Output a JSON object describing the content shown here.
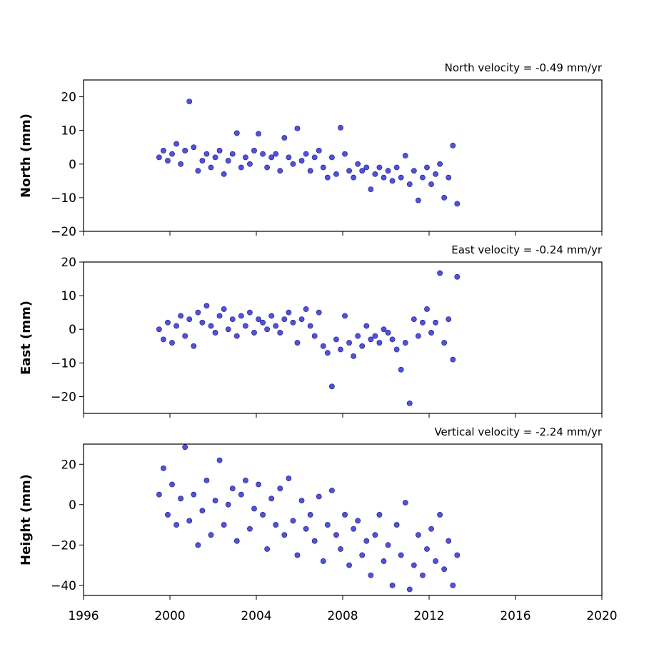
{
  "chart_data": [
    {
      "type": "scatter",
      "title": "North velocity = -0.49 mm/yr",
      "y_label": "North (mm)",
      "color": "#4d4dff",
      "xlim": [
        1996,
        2020
      ],
      "xticks": [
        1996,
        2000,
        2004,
        2008,
        2012,
        2016,
        2020
      ],
      "ylim": [
        -20,
        25
      ],
      "yticks": [
        {
          "value": -20,
          "label": "−20"
        },
        {
          "value": -10,
          "label": "−10"
        },
        0,
        10,
        20
      ],
      "x": [
        1999.5,
        1999.7,
        1999.9,
        2000.1,
        2000.3,
        2000.5,
        2000.7,
        2000.9,
        2001.1,
        2001.3,
        2001.5,
        2001.7,
        2001.9,
        2002.1,
        2002.3,
        2002.5,
        2002.7,
        2002.9,
        2003.1,
        2003.3,
        2003.5,
        2003.7,
        2003.9,
        2004.1,
        2004.3,
        2004.5,
        2004.7,
        2004.9,
        2005.1,
        2005.3,
        2005.5,
        2005.7,
        2005.9,
        2006.1,
        2006.3,
        2006.5,
        2006.7,
        2006.9,
        2007.1,
        2007.3,
        2007.5,
        2007.7,
        2007.9,
        2008.1,
        2008.3,
        2008.5,
        2008.7,
        2008.9,
        2009.1,
        2009.3,
        2009.5,
        2009.7,
        2009.9,
        2010.1,
        2010.3,
        2010.5,
        2010.7,
        2010.9,
        2011.1,
        2011.3,
        2011.5,
        2011.7,
        2011.9,
        2012.1,
        2012.3,
        2012.5,
        2012.7,
        2012.9,
        2013.1,
        2013.3
      ],
      "values": [
        2,
        4,
        1,
        3,
        6,
        0,
        4,
        18.6,
        5,
        -2,
        1,
        3,
        -1,
        2,
        4,
        -3,
        1,
        3,
        9.2,
        -1,
        2,
        0,
        4,
        9,
        3,
        -1,
        2,
        3,
        -2,
        7.8,
        2,
        0,
        10.6,
        1,
        3,
        -2,
        2,
        4,
        -1,
        -4,
        2,
        -3,
        10.8,
        3,
        -2,
        -4,
        0,
        -2,
        -1,
        -7.5,
        -3,
        -1,
        -4,
        -2,
        -5,
        -1,
        -4,
        2.5,
        -6,
        -2,
        -10.8,
        -4,
        -1,
        -6,
        -3,
        0,
        -10,
        -4,
        5.5,
        -11.8
      ]
    },
    {
      "type": "scatter",
      "title": "East velocity = -0.24 mm/yr",
      "y_label": "East (mm)",
      "color": "#4d4dff",
      "xlim": [
        1996,
        2020
      ],
      "xticks": [
        1996,
        2000,
        2004,
        2008,
        2012,
        2016,
        2020
      ],
      "ylim": [
        -25,
        20
      ],
      "yticks": [
        {
          "value": -20,
          "label": "−20"
        },
        {
          "value": -10,
          "label": "−10"
        },
        0,
        10,
        20
      ],
      "x": [
        1999.5,
        1999.7,
        1999.9,
        2000.1,
        2000.3,
        2000.5,
        2000.7,
        2000.9,
        2001.1,
        2001.3,
        2001.5,
        2001.7,
        2001.9,
        2002.1,
        2002.3,
        2002.5,
        2002.7,
        2002.9,
        2003.1,
        2003.3,
        2003.5,
        2003.7,
        2003.9,
        2004.1,
        2004.3,
        2004.5,
        2004.7,
        2004.9,
        2005.1,
        2005.3,
        2005.5,
        2005.7,
        2005.9,
        2006.1,
        2006.3,
        2006.5,
        2006.7,
        2006.9,
        2007.1,
        2007.3,
        2007.5,
        2007.7,
        2007.9,
        2008.1,
        2008.3,
        2008.5,
        2008.7,
        2008.9,
        2009.1,
        2009.3,
        2009.5,
        2009.7,
        2009.9,
        2010.1,
        2010.3,
        2010.5,
        2010.7,
        2010.9,
        2011.1,
        2011.3,
        2011.5,
        2011.7,
        2011.9,
        2012.1,
        2012.3,
        2012.5,
        2012.7,
        2012.9,
        2013.1,
        2013.3
      ],
      "values": [
        0,
        -3,
        2,
        -4,
        1,
        4,
        -2,
        3,
        -5,
        5,
        2,
        7,
        1,
        -1,
        4,
        6,
        0,
        3,
        -2,
        4,
        1,
        5,
        -1,
        3,
        2,
        0,
        4,
        1,
        -1,
        3,
        5,
        2,
        -4,
        3,
        6,
        1,
        -2,
        5,
        -5,
        -7,
        -17,
        -3,
        -6,
        4,
        -4,
        -8,
        -2,
        -5,
        1,
        -3,
        -2,
        -4,
        0,
        -1,
        -3,
        -6,
        -12,
        -4,
        -22,
        3,
        -2,
        2,
        6,
        -1,
        2,
        16.7,
        -4,
        3,
        -9,
        15.6
      ]
    },
    {
      "type": "scatter",
      "title": "Vertical velocity = -2.24 mm/yr",
      "y_label": "Height (mm)",
      "color": "#4d4dff",
      "xlim": [
        1996,
        2020
      ],
      "xticks": [
        1996,
        2000,
        2004,
        2008,
        2012,
        2016,
        2020
      ],
      "ylim": [
        -45,
        30
      ],
      "yticks": [
        {
          "value": -40,
          "label": "−40"
        },
        {
          "value": -20,
          "label": "−20"
        },
        0,
        20
      ],
      "x": [
        1999.5,
        1999.7,
        1999.9,
        2000.1,
        2000.3,
        2000.5,
        2000.7,
        2000.9,
        2001.1,
        2001.3,
        2001.5,
        2001.7,
        2001.9,
        2002.1,
        2002.3,
        2002.5,
        2002.7,
        2002.9,
        2003.1,
        2003.3,
        2003.5,
        2003.7,
        2003.9,
        2004.1,
        2004.3,
        2004.5,
        2004.7,
        2004.9,
        2005.1,
        2005.3,
        2005.5,
        2005.7,
        2005.9,
        2006.1,
        2006.3,
        2006.5,
        2006.7,
        2006.9,
        2007.1,
        2007.3,
        2007.5,
        2007.7,
        2007.9,
        2008.1,
        2008.3,
        2008.5,
        2008.7,
        2008.9,
        2009.1,
        2009.3,
        2009.5,
        2009.7,
        2009.9,
        2010.1,
        2010.3,
        2010.5,
        2010.7,
        2010.9,
        2011.1,
        2011.3,
        2011.5,
        2011.7,
        2011.9,
        2012.1,
        2012.3,
        2012.5,
        2012.7,
        2012.9,
        2013.1,
        2013.3
      ],
      "values": [
        5,
        18,
        -5,
        10,
        -10,
        3,
        28.5,
        -8,
        5,
        -20,
        -3,
        12,
        -15,
        2,
        22,
        -10,
        0,
        8,
        -18,
        5,
        12,
        -12,
        -2,
        10,
        -5,
        -22,
        3,
        -10,
        8,
        -15,
        13,
        -8,
        -25,
        2,
        -12,
        -5,
        -18,
        4,
        -28,
        -10,
        7,
        -15,
        -22,
        -5,
        -30,
        -12,
        -8,
        -25,
        -18,
        -35,
        -15,
        -5,
        -28,
        -20,
        -40,
        -10,
        -25,
        1,
        -42,
        -30,
        -15,
        -35,
        -22,
        -12,
        -28,
        -5,
        -32,
        -18,
        -40,
        -25
      ]
    }
  ]
}
